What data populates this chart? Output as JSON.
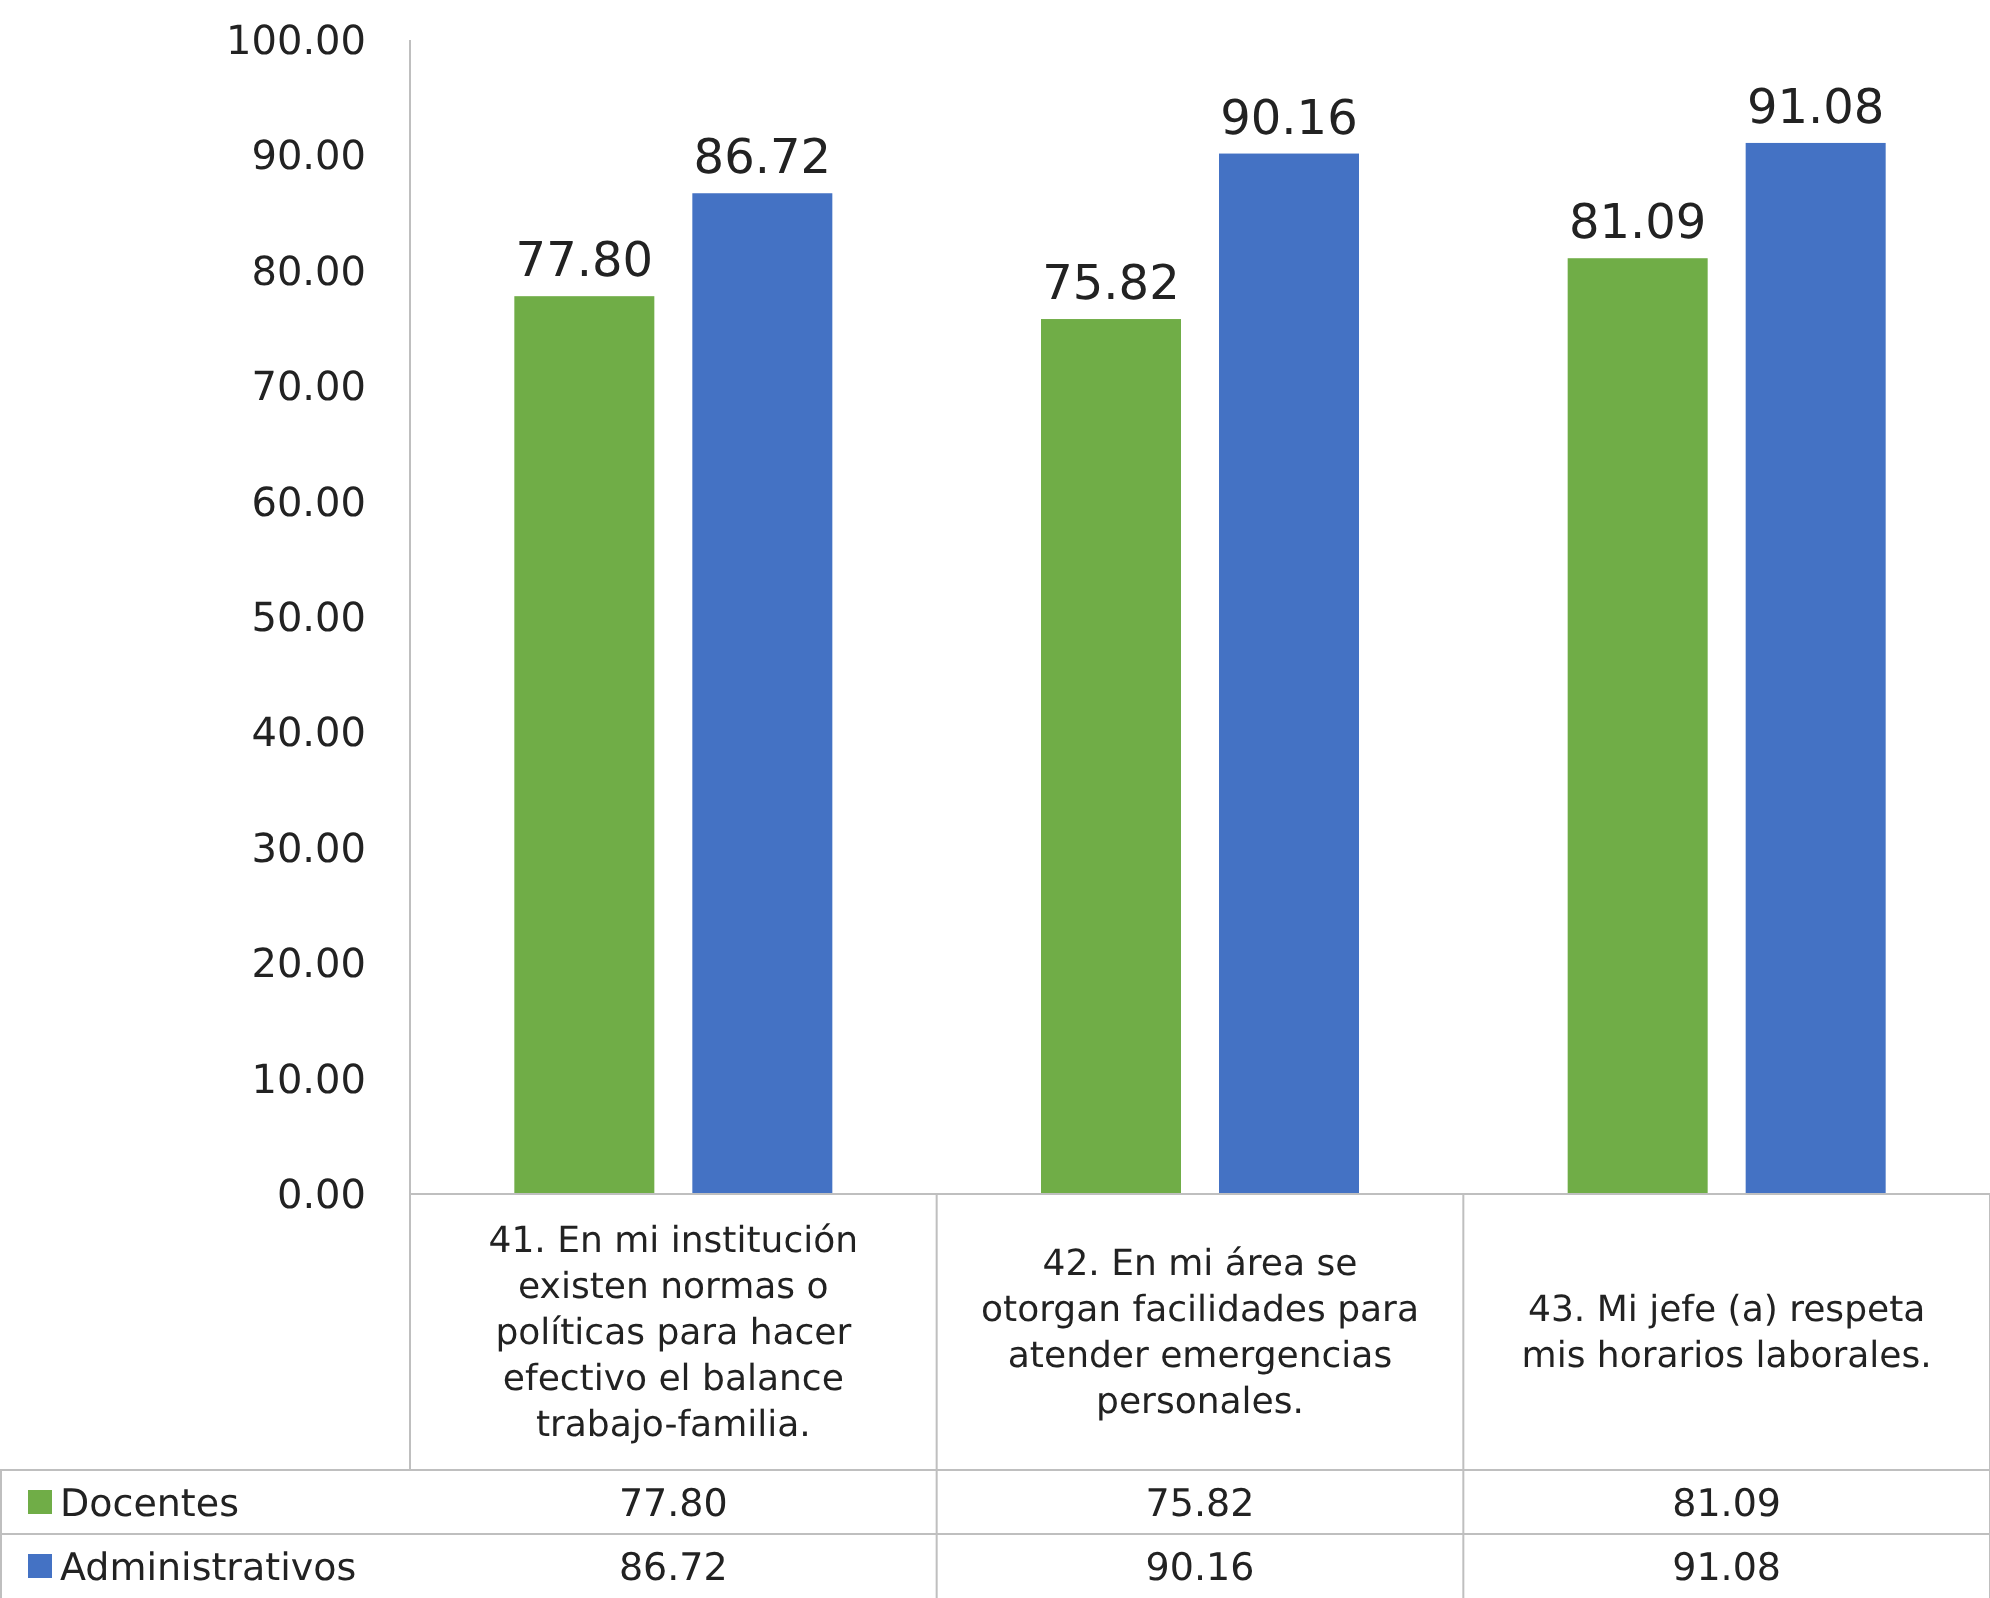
{
  "chart_data": {
    "type": "bar",
    "categories": [
      "41. En mi institución existen normas o políticas para hacer efectivo el balance trabajo-familia.",
      "42. En mi área se otorgan facilidades para atender emergencias personales.",
      "43. Mi jefe (a) respeta mis horarios laborales."
    ],
    "series": [
      {
        "name": "Docentes",
        "color": "#70ad47",
        "values": [
          77.8,
          75.82,
          81.09
        ],
        "value_labels": [
          "77.80",
          "75.82",
          "81.09"
        ]
      },
      {
        "name": "Administrativos",
        "color": "#4472c4",
        "values": [
          86.72,
          90.16,
          91.08
        ],
        "value_labels": [
          "86.72",
          "90.16",
          "91.08"
        ]
      }
    ],
    "ylim": [
      0,
      100
    ],
    "yticks": [
      {
        "value": 0,
        "label": "0.00"
      },
      {
        "value": 10,
        "label": "10.00"
      },
      {
        "value": 20,
        "label": "20.00"
      },
      {
        "value": 30,
        "label": "30.00"
      },
      {
        "value": 40,
        "label": "40.00"
      },
      {
        "value": 50,
        "label": "50.00"
      },
      {
        "value": 60,
        "label": "60.00"
      },
      {
        "value": 70,
        "label": "70.00"
      },
      {
        "value": 80,
        "label": "80.00"
      },
      {
        "value": 90,
        "label": "90.00"
      },
      {
        "value": 100,
        "label": "100.00"
      }
    ],
    "legend": "bottom"
  }
}
